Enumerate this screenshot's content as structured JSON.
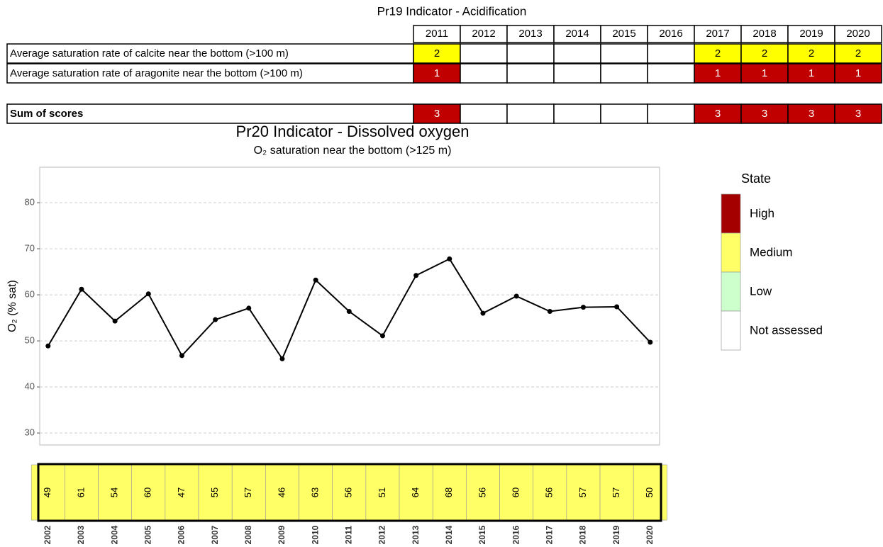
{
  "table": {
    "title": "Pr19 Indicator - Acidification",
    "columns": [
      "2011",
      "2012",
      "2013",
      "2014",
      "2015",
      "2016",
      "2017",
      "2018",
      "2019",
      "2020"
    ],
    "score_colors": {
      "1": "#c00000",
      "2": "#ffff00",
      "3": "#c00000"
    },
    "rows": [
      {
        "label": "Average saturation rate of calcite near the bottom (>100 m)",
        "values": [
          2,
          null,
          null,
          null,
          null,
          null,
          2,
          2,
          2,
          2
        ]
      },
      {
        "label": "Average saturation rate of aragonite near the bottom (>100 m)",
        "values": [
          1,
          null,
          null,
          null,
          null,
          null,
          1,
          1,
          1,
          1
        ]
      }
    ],
    "sum_row": {
      "label": "Sum of scores",
      "values": [
        3,
        null,
        null,
        null,
        null,
        null,
        3,
        3,
        3,
        3
      ]
    }
  },
  "chart_data": {
    "type": "line",
    "title": "Pr20 Indicator - Dissolved oxygen",
    "subtitle": "O₂ saturation near the bottom (>125 m)",
    "y_label": "O₂ (% sat)",
    "x": [
      2002,
      2003,
      2004,
      2005,
      2006,
      2007,
      2008,
      2009,
      2010,
      2011,
      2012,
      2013,
      2014,
      2015,
      2016,
      2017,
      2018,
      2019,
      2020
    ],
    "xlim": [
      2001.75,
      2020.28
    ],
    "series": [
      {
        "name": "O2",
        "color": "#000000",
        "values": [
          48.9,
          61.2,
          54.3,
          60.2,
          46.8,
          54.6,
          57.1,
          46.1,
          63.2,
          56.4,
          51.1,
          64.2,
          67.8,
          56.0,
          59.7,
          56.4,
          57.3,
          57.4,
          49.7
        ],
        "value_labels": [
          "49",
          "61",
          "54",
          "60",
          "47",
          "55",
          "57",
          "46",
          "63",
          "56",
          "51",
          "64",
          "68",
          "56",
          "60",
          "56",
          "57",
          "57",
          "50"
        ]
      }
    ],
    "state_color": "#ffff66",
    "ylim": [
      27.4,
      87.7
    ],
    "yticks": [
      30,
      40,
      50,
      60,
      70,
      80
    ],
    "grid": true,
    "legend": {
      "title": "State",
      "items": [
        {
          "name": "High",
          "color": "#a50000"
        },
        {
          "name": "Medium",
          "color": "#ffff66"
        },
        {
          "name": "Low",
          "color": "#ccffcc"
        },
        {
          "name": "Not assessed",
          "color": "#ffffff"
        }
      ]
    }
  }
}
